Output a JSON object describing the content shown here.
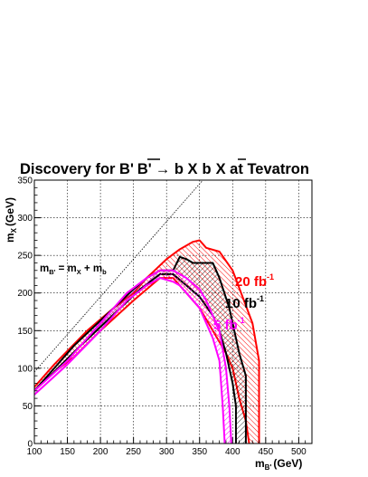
{
  "chart_data": {
    "type": "area",
    "title_parts": {
      "t1": "Discovery for B'",
      "t2": "B'",
      "t3": "→ b X",
      "t4": "b",
      "t5": "X at Tevatron"
    },
    "xlabel": {
      "main": "m",
      "sub": "B'",
      "unit": "(GeV)"
    },
    "ylabel": {
      "main": "m",
      "sub": "X",
      "unit": "(GeV)"
    },
    "xlim": [
      100,
      520
    ],
    "ylim": [
      0,
      350
    ],
    "xticks": [
      100,
      150,
      200,
      250,
      300,
      350,
      400,
      450,
      500
    ],
    "yticks": [
      0,
      50,
      100,
      150,
      200,
      250,
      300,
      350
    ],
    "grid": true,
    "reference_line": {
      "label": {
        "m1": "m",
        "s1": "B'",
        "eq": " = m",
        "s2": "X",
        "plus": " + m",
        "s3": "b"
      },
      "m_b": 5
    },
    "series": [
      {
        "name": "20 fb",
        "sup": "-1",
        "color": "#ff0000",
        "upper": [
          [
            100,
            75
          ],
          [
            130,
            105
          ],
          [
            180,
            150
          ],
          [
            200,
            165
          ],
          [
            220,
            180
          ],
          [
            250,
            200
          ],
          [
            270,
            220
          ],
          [
            300,
            245
          ],
          [
            320,
            258
          ],
          [
            340,
            268
          ],
          [
            350,
            270
          ],
          [
            360,
            260
          ],
          [
            380,
            255
          ],
          [
            400,
            230
          ],
          [
            430,
            160
          ],
          [
            440,
            110
          ],
          [
            440,
            0
          ]
        ],
        "lower": [
          [
            100,
            70
          ],
          [
            130,
            95
          ],
          [
            160,
            115
          ],
          [
            200,
            150
          ],
          [
            250,
            190
          ],
          [
            290,
            220
          ],
          [
            310,
            220
          ],
          [
            330,
            200
          ],
          [
            350,
            180
          ],
          [
            370,
            150
          ],
          [
            390,
            120
          ],
          [
            400,
            100
          ],
          [
            410,
            60
          ],
          [
            420,
            30
          ],
          [
            425,
            0
          ]
        ]
      },
      {
        "name": "10 fb",
        "sup": "-1",
        "color": "#000000",
        "upper": [
          [
            100,
            70
          ],
          [
            130,
            100
          ],
          [
            160,
            130
          ],
          [
            190,
            155
          ],
          [
            220,
            180
          ],
          [
            250,
            205
          ],
          [
            270,
            220
          ],
          [
            290,
            230
          ],
          [
            310,
            230
          ],
          [
            320,
            248
          ],
          [
            330,
            245
          ],
          [
            340,
            240
          ],
          [
            370,
            240
          ],
          [
            380,
            220
          ],
          [
            395,
            180
          ],
          [
            410,
            120
          ],
          [
            420,
            90
          ],
          [
            420,
            0
          ]
        ],
        "lower": [
          [
            100,
            70
          ],
          [
            130,
            95
          ],
          [
            170,
            130
          ],
          [
            200,
            155
          ],
          [
            230,
            180
          ],
          [
            260,
            205
          ],
          [
            290,
            225
          ],
          [
            310,
            225
          ],
          [
            330,
            210
          ],
          [
            350,
            195
          ],
          [
            370,
            170
          ],
          [
            380,
            150
          ],
          [
            390,
            120
          ],
          [
            400,
            80
          ],
          [
            405,
            50
          ],
          [
            405,
            0
          ]
        ]
      },
      {
        "name": "5 fb",
        "sup": "-1",
        "color": "#ff00ff",
        "upper": [
          [
            100,
            70
          ],
          [
            150,
            110
          ],
          [
            200,
            160
          ],
          [
            240,
            200
          ],
          [
            270,
            220
          ],
          [
            290,
            230
          ],
          [
            310,
            230
          ],
          [
            320,
            225
          ],
          [
            330,
            220
          ],
          [
            350,
            205
          ],
          [
            360,
            190
          ],
          [
            370,
            170
          ],
          [
            380,
            150
          ],
          [
            390,
            100
          ],
          [
            395,
            50
          ],
          [
            398,
            0
          ]
        ],
        "lower": [
          [
            100,
            65
          ],
          [
            150,
            105
          ],
          [
            200,
            150
          ],
          [
            240,
            190
          ],
          [
            270,
            210
          ],
          [
            290,
            220
          ],
          [
            310,
            215
          ],
          [
            320,
            210
          ],
          [
            330,
            200
          ],
          [
            350,
            180
          ],
          [
            360,
            160
          ],
          [
            370,
            140
          ],
          [
            380,
            110
          ],
          [
            385,
            50
          ],
          [
            388,
            0
          ]
        ]
      }
    ]
  }
}
